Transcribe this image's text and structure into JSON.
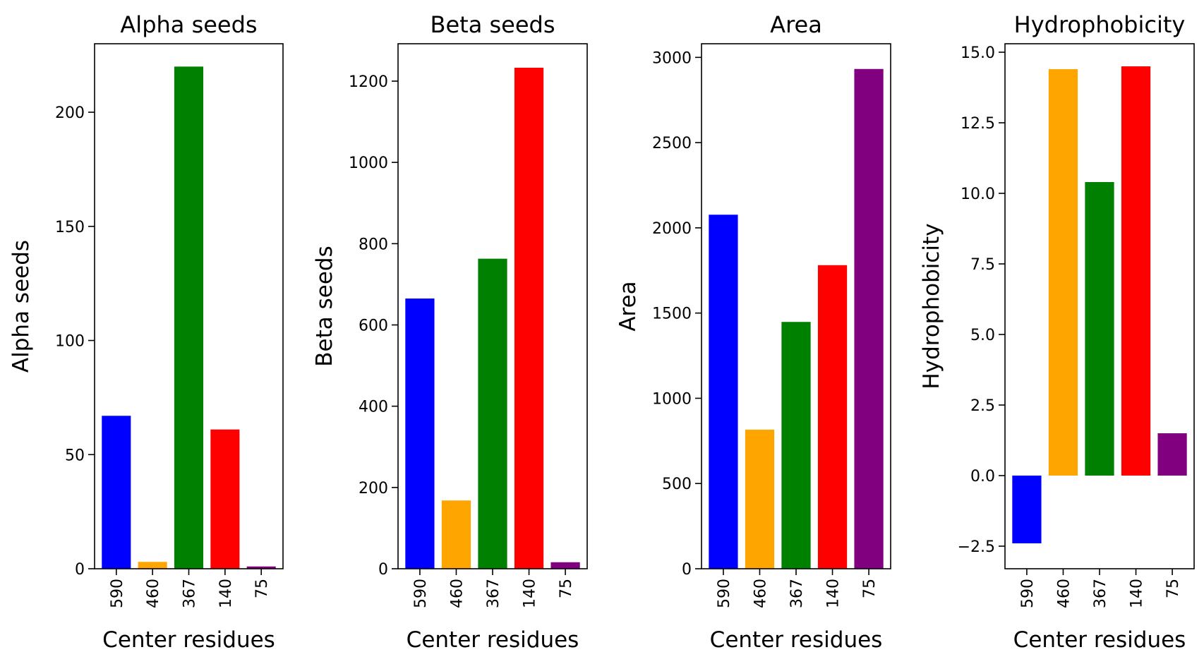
{
  "chart_data": [
    {
      "type": "bar",
      "title": "Alpha seeds",
      "xlabel": "Center residues",
      "ylabel": "Alpha seeds",
      "categories": [
        "590",
        "460",
        "367",
        "140",
        "75"
      ],
      "values": [
        67,
        3,
        220,
        61,
        1
      ],
      "colors": [
        "#0000ff",
        "#ffa500",
        "#008000",
        "#ff0000",
        "#800080"
      ],
      "ylim": [
        0,
        230
      ],
      "yticks": [
        0,
        50,
        100,
        150,
        200
      ],
      "ytick_labels": [
        "0",
        "50",
        "100",
        "150",
        "200"
      ]
    },
    {
      "type": "bar",
      "title": "Beta seeds",
      "xlabel": "Center residues",
      "ylabel": "Beta seeds",
      "categories": [
        "590",
        "460",
        "367",
        "140",
        "75"
      ],
      "values": [
        665,
        168,
        763,
        1233,
        16
      ],
      "colors": [
        "#0000ff",
        "#ffa500",
        "#008000",
        "#ff0000",
        "#800080"
      ],
      "ylim": [
        0,
        1292
      ],
      "yticks": [
        0,
        200,
        400,
        600,
        800,
        1000,
        1200
      ],
      "ytick_labels": [
        "0",
        "200",
        "400",
        "600",
        "800",
        "1000",
        "1200"
      ]
    },
    {
      "type": "bar",
      "title": "Area",
      "xlabel": "Center residues",
      "ylabel": "Area",
      "categories": [
        "590",
        "460",
        "367",
        "140",
        "75"
      ],
      "values": [
        2077,
        816,
        1448,
        1781,
        2932
      ],
      "colors": [
        "#0000ff",
        "#ffa500",
        "#008000",
        "#ff0000",
        "#800080"
      ],
      "ylim": [
        0,
        3080
      ],
      "yticks": [
        0,
        500,
        1000,
        1500,
        2000,
        2500,
        3000
      ],
      "ytick_labels": [
        "0",
        "500",
        "1000",
        "1500",
        "2000",
        "2500",
        "3000"
      ]
    },
    {
      "type": "bar",
      "title": "Hydrophobicity",
      "xlabel": "Center residues",
      "ylabel": "Hydrophobicity",
      "categories": [
        "590",
        "460",
        "367",
        "140",
        "75"
      ],
      "values": [
        -2.4,
        14.4,
        10.4,
        14.5,
        1.5
      ],
      "colors": [
        "#0000ff",
        "#ffa500",
        "#008000",
        "#ff0000",
        "#800080"
      ],
      "ylim": [
        -3.3,
        15.3
      ],
      "yticks": [
        -2.5,
        0,
        2.5,
        5,
        7.5,
        10,
        12.5,
        15
      ],
      "ytick_labels": [
        "−2.5",
        "0.0",
        "2.5",
        "5.0",
        "7.5",
        "10.0",
        "12.5",
        "15.0"
      ]
    }
  ]
}
